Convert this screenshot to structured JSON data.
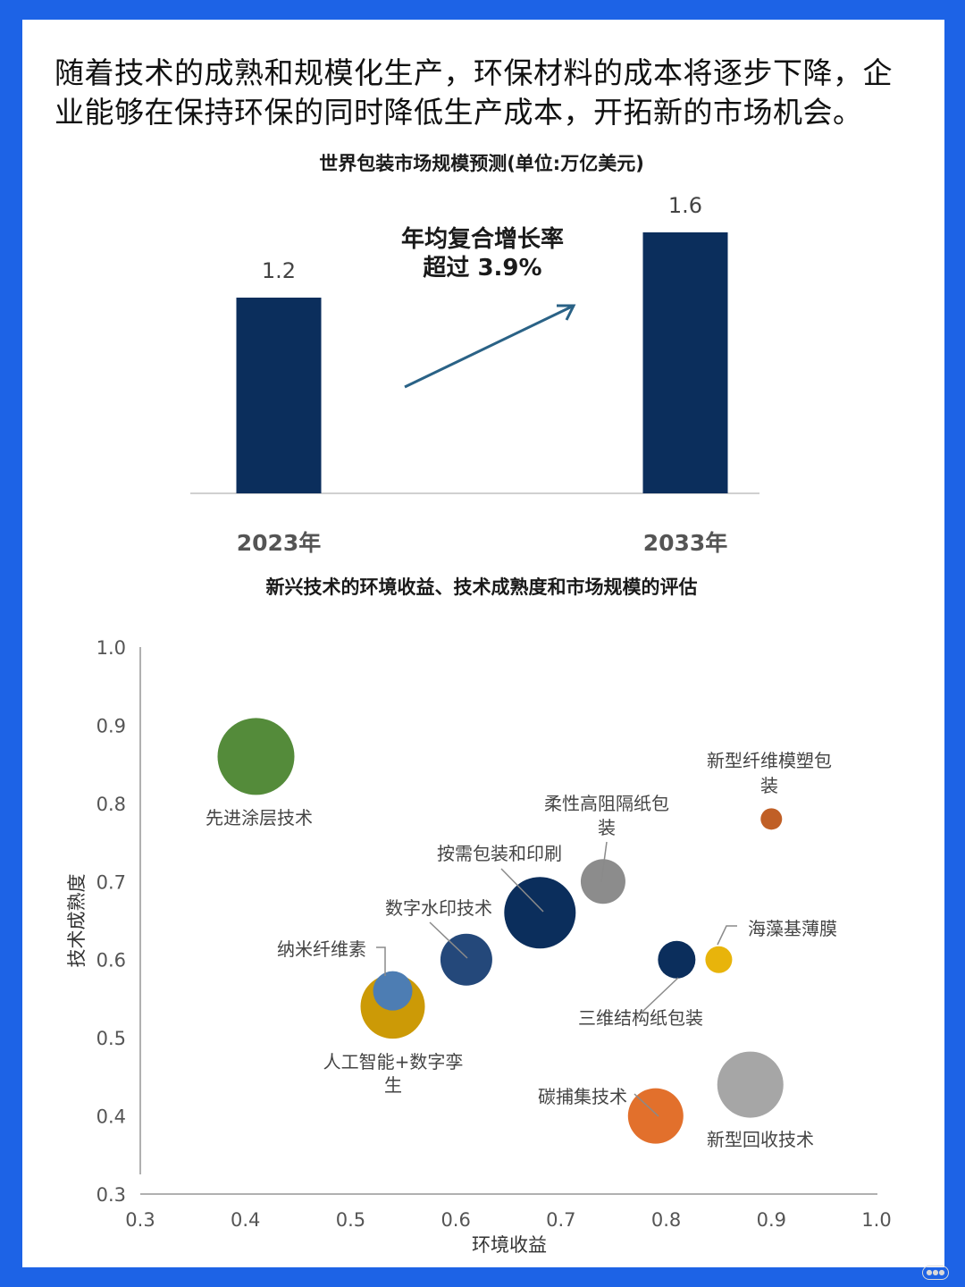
{
  "intro": "随着技术的成熟和规模化生产，环保材料的成本将逐步下降，企业能够在保持环保的同时降低生产成本，开拓新的市场机会。",
  "chart_data": [
    {
      "type": "bar",
      "title": "世界包装市场规模预测(单位:万亿美元)",
      "categories": [
        "2023年",
        "2033年"
      ],
      "values": [
        1.2,
        1.6
      ],
      "value_labels": [
        "1.2",
        "1.6"
      ],
      "annotation": [
        "年均复合增长率",
        "超过  3.9%"
      ],
      "ylim": [
        0,
        1.6
      ],
      "color": "#0b2e5c"
    },
    {
      "type": "scatter",
      "title": "新兴技术的环境收益、技术成熟度和市场规模的评估",
      "xlabel": "环境收益",
      "ylabel": "技术成熟度",
      "xlim": [
        0.3,
        1.0
      ],
      "ylim": [
        0.3,
        1.0
      ],
      "xticks": [
        "0.3",
        "0.4",
        "0.5",
        "0.6",
        "0.7",
        "0.8",
        "0.9",
        "1.0"
      ],
      "yticks": [
        "0.3",
        "0.4",
        "0.5",
        "0.6",
        "0.7",
        "0.8",
        "0.9",
        "1.0"
      ],
      "points": [
        {
          "name": "先进涂层技术",
          "x": 0.41,
          "y": 0.86,
          "size": 43,
          "color": "#548b3a"
        },
        {
          "name": "新型纤维模塑包装",
          "x": 0.9,
          "y": 0.78,
          "size": 12,
          "color": "#c05f26"
        },
        {
          "name": "柔性高阻隔纸包装",
          "x": 0.74,
          "y": 0.7,
          "size": 25,
          "color": "#8c8c8c"
        },
        {
          "name": "按需包装和印刷",
          "x": 0.68,
          "y": 0.66,
          "size": 40,
          "color": "#0b2e5c"
        },
        {
          "name": "数字水印技术",
          "x": 0.61,
          "y": 0.6,
          "size": 29,
          "color": "#24487a"
        },
        {
          "name": "海藻基薄膜",
          "x": 0.85,
          "y": 0.6,
          "size": 15,
          "color": "#e8b40b"
        },
        {
          "name": "三维结构纸包装",
          "x": 0.81,
          "y": 0.6,
          "size": 21,
          "color": "#0b2e5c"
        },
        {
          "name": "人工智能+数字孪生",
          "x": 0.54,
          "y": 0.54,
          "size": 36,
          "color": "#cc9a06"
        },
        {
          "name": "纳米纤维素",
          "x": 0.54,
          "y": 0.56,
          "size": 22,
          "color": "#4d7db3"
        },
        {
          "name": "新型回收技术",
          "x": 0.88,
          "y": 0.44,
          "size": 37,
          "color": "#a6a6a6"
        },
        {
          "name": "碳捕集技术",
          "x": 0.79,
          "y": 0.4,
          "size": 31,
          "color": "#e2702c"
        }
      ]
    }
  ]
}
